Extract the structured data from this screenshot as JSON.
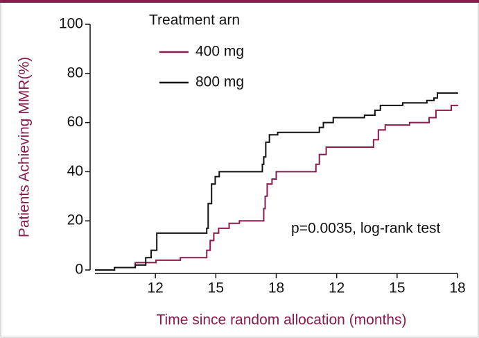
{
  "chart_data": {
    "type": "step",
    "ylabel": "Patients Achieving MMR(%)",
    "xlabel": "Time since random allocation (months)",
    "legend_title": "Treatment arn",
    "annotation": "p=0.0035, log-rank test",
    "xlim": [
      9,
      27
    ],
    "ylim": [
      0,
      100
    ],
    "xticks": [
      12,
      15,
      18,
      {
        "value": 21,
        "label": "12"
      },
      {
        "value": 24,
        "label": "15"
      },
      {
        "value": 27,
        "label": "18"
      }
    ],
    "yticks": [
      0,
      20,
      40,
      60,
      80,
      100
    ],
    "series": [
      {
        "name": "400 mg",
        "color": "#8a1b4f",
        "x": [
          9,
          9.97,
          11.0,
          12.03,
          13.24,
          14.55,
          14.72,
          14.9,
          15.14,
          15.66,
          16.17,
          17.38,
          17.45,
          17.55,
          17.79,
          18.0,
          19.97,
          20.14,
          20.48,
          22.83,
          23.07,
          23.41,
          24.62,
          25.59,
          25.93,
          26.69,
          27.03
        ],
        "values": [
          0,
          1,
          3,
          4,
          5,
          8,
          12,
          15,
          17,
          19,
          20,
          25,
          30,
          35,
          37,
          40,
          43,
          47,
          50,
          53,
          57,
          59,
          60,
          62,
          65,
          67,
          67
        ]
      },
      {
        "name": "800 mg",
        "color": "#111111",
        "x": [
          9,
          9.97,
          11.0,
          11.52,
          11.79,
          12.07,
          14.55,
          14.62,
          14.79,
          14.97,
          15.17,
          17.31,
          17.38,
          17.48,
          17.66,
          18.07,
          20.14,
          20.34,
          20.83,
          22.38,
          22.9,
          23.17,
          24.28,
          25.48,
          25.83,
          26.0,
          27.03
        ],
        "values": [
          0,
          1,
          2,
          5,
          8,
          15,
          17,
          27,
          35,
          38,
          40,
          43,
          46,
          52,
          55,
          56,
          58,
          60,
          62,
          63,
          65,
          67,
          68,
          69,
          70,
          72,
          72
        ]
      }
    ]
  }
}
